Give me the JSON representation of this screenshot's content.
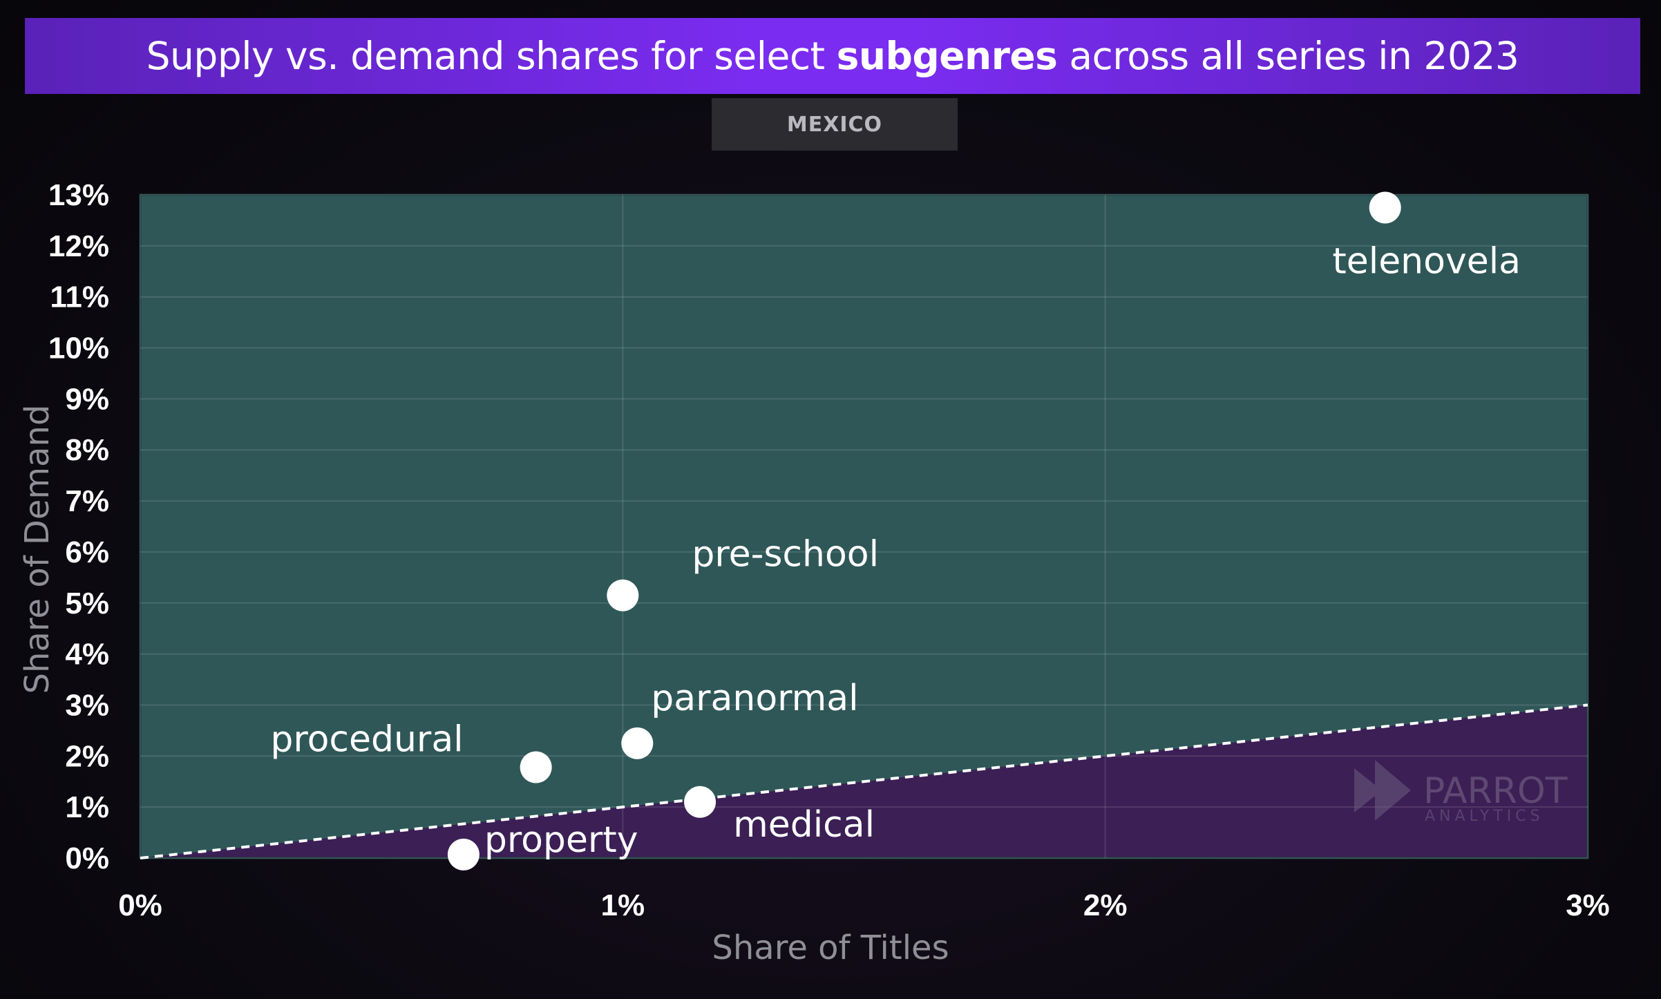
{
  "title": {
    "prefix": "Supply vs. demand shares for select ",
    "bold": "subgenres",
    "suffix": " across all series in 2023"
  },
  "subtitle": "MEXICO",
  "watermark": {
    "name": "PARROT",
    "sub": "ANALYTICS"
  },
  "colors": {
    "upper_region": "#2f5758",
    "lower_region": "#3b1f55",
    "point": "#ffffff",
    "title_bar": "#7a2cf0"
  },
  "chart_data": {
    "type": "scatter",
    "title": "Supply vs. demand shares for select subgenres across all series in 2023",
    "subtitle": "MEXICO",
    "xlabel": "Share of Titles",
    "ylabel": "Share of Demand",
    "xlim": [
      0,
      3
    ],
    "ylim": [
      0,
      13
    ],
    "x_unit": "%",
    "y_unit": "%",
    "xticks": [
      "0%",
      "1%",
      "2%",
      "3%"
    ],
    "yticks": [
      "0%",
      "1%",
      "2%",
      "3%",
      "4%",
      "5%",
      "6%",
      "7%",
      "8%",
      "9%",
      "10%",
      "11%",
      "12%",
      "13%"
    ],
    "grid": true,
    "reference_line": {
      "style": "dashed",
      "from": [
        0,
        0
      ],
      "to": [
        3,
        3
      ]
    },
    "points": [
      {
        "label": "telenovela",
        "x": 2.58,
        "y": 12.75
      },
      {
        "label": "pre-school",
        "x": 1.0,
        "y": 5.15
      },
      {
        "label": "paranormal",
        "x": 1.03,
        "y": 2.25
      },
      {
        "label": "procedural",
        "x": 0.82,
        "y": 1.78
      },
      {
        "label": "medical",
        "x": 1.16,
        "y": 1.1
      },
      {
        "label": "property",
        "x": 0.67,
        "y": 0.07
      }
    ]
  }
}
